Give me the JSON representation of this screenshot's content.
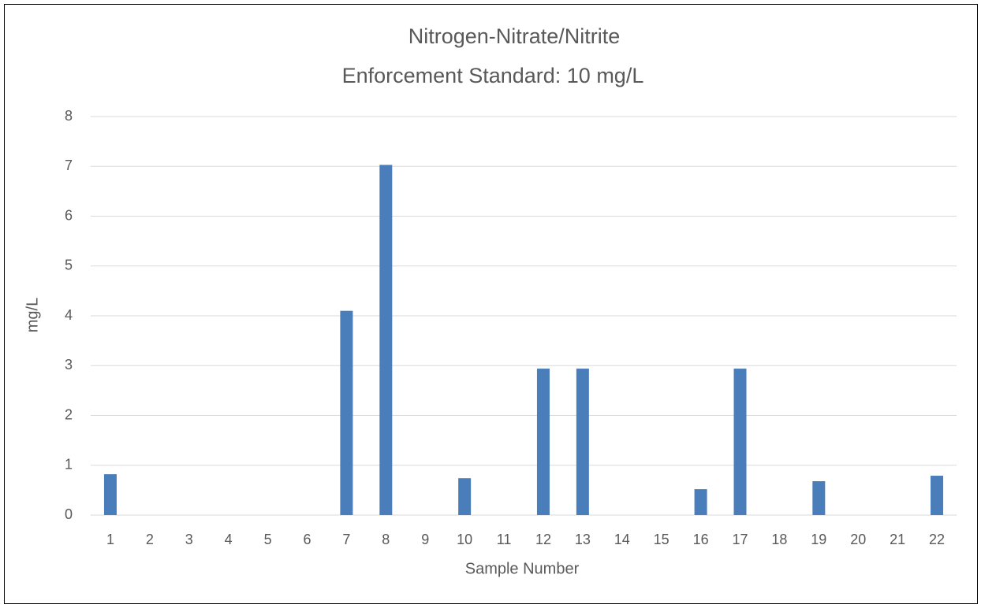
{
  "chart_data": {
    "type": "bar",
    "title": "Nitrogen-Nitrate/Nitrite",
    "subtitle": "Enforcement Standard: 10 mg/L",
    "x_label": "Sample Number",
    "y_label": "mg/L",
    "categories": [
      "1",
      "2",
      "3",
      "4",
      "5",
      "6",
      "7",
      "8",
      "9",
      "10",
      "11",
      "12",
      "13",
      "14",
      "15",
      "16",
      "17",
      "18",
      "19",
      "20",
      "21",
      "22"
    ],
    "values": [
      0.82,
      0,
      0,
      0,
      0,
      0,
      4.1,
      7.03,
      0,
      0.74,
      0,
      2.94,
      2.94,
      0,
      0,
      0.52,
      2.94,
      0,
      0.68,
      0,
      0,
      0.79
    ],
    "color": "#4a7ebb",
    "ylim": [
      0,
      8
    ],
    "yticks": [
      0,
      1,
      2,
      3,
      4,
      5,
      6,
      7,
      8
    ],
    "grid": true
  }
}
